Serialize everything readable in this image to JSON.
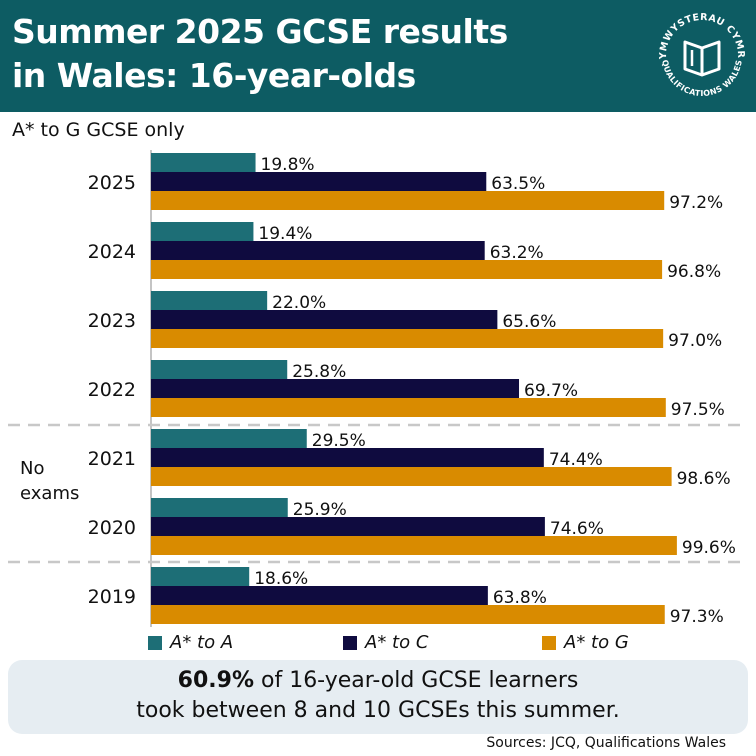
{
  "title": "Summer 2025 GCSE results in Wales: 16-year-olds",
  "title_line1": "Summer 2025 GCSE results",
  "title_line2": "in Wales: 16-year-olds",
  "logo": {
    "text_top": "CYMWYSTERAU CYMRU",
    "text_bottom": "QUALIFICATIONS WALES"
  },
  "subtitle": "A* to G GCSE only",
  "no_exams_label": [
    "No",
    "exams"
  ],
  "colors": {
    "header": "#0d5c63",
    "a_star_a": "#1d6e76",
    "a_star_c": "#0f0b3f",
    "a_star_g": "#d98b00",
    "callout_bg": "#e6edf2"
  },
  "chart_data": {
    "type": "bar",
    "orientation": "horizontal",
    "title": "Summer 2025 GCSE results in Wales: 16-year-olds",
    "subtitle": "A* to G GCSE only",
    "categories": [
      "2025",
      "2024",
      "2023",
      "2022",
      "2021",
      "2020",
      "2019"
    ],
    "series": [
      {
        "name": "A* to A",
        "values": [
          19.8,
          19.4,
          22.0,
          25.8,
          29.5,
          25.9,
          18.6
        ]
      },
      {
        "name": "A* to C",
        "values": [
          63.5,
          63.2,
          65.6,
          69.7,
          74.4,
          74.6,
          63.8
        ]
      },
      {
        "name": "A* to G",
        "values": [
          97.2,
          96.8,
          97.0,
          97.5,
          98.6,
          99.6,
          97.3
        ]
      }
    ],
    "value_labels": [
      [
        "19.8%",
        "63.5%",
        "97.2%"
      ],
      [
        "19.4%",
        "63.2%",
        "96.8%"
      ],
      [
        "22.0%",
        "65.6%",
        "97.0%"
      ],
      [
        "25.8%",
        "69.7%",
        "97.5%"
      ],
      [
        "29.5%",
        "74.4%",
        "98.6%"
      ],
      [
        "25.9%",
        "74.6%",
        "99.6%"
      ],
      [
        "18.6%",
        "63.8%",
        "97.3%"
      ]
    ],
    "xlim": [
      0,
      100
    ],
    "annotation": "No exams (2021, 2020)",
    "legend": "bottom"
  },
  "legend": [
    {
      "label": "A* to A"
    },
    {
      "label": "A* to C"
    },
    {
      "label": "A* to G"
    }
  ],
  "callout": {
    "bold": "60.9%",
    "rest_line1": " of 16-year-old GCSE learners",
    "line2": "took between 8 and 10 GCSEs this summer."
  },
  "sources": "Sources: JCQ, Qualifications Wales"
}
